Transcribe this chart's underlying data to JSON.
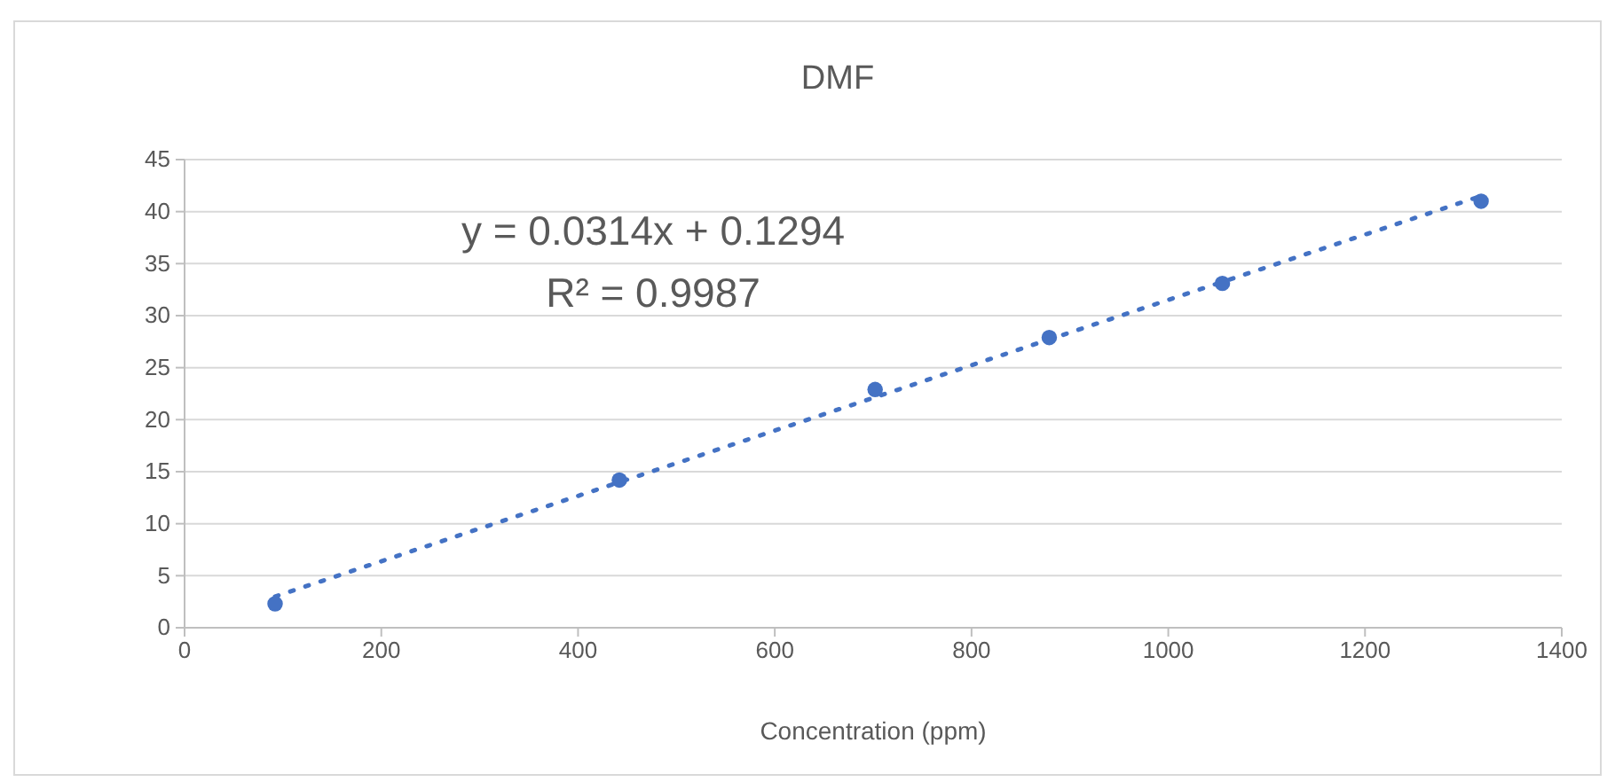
{
  "chart_data": {
    "type": "scatter",
    "title": "DMF",
    "xlabel": "Concentration (ppm)",
    "xlim": [
      0,
      1400
    ],
    "xticks": [
      0,
      200,
      400,
      600,
      800,
      1000,
      1200,
      1400
    ],
    "ylim": [
      0,
      45
    ],
    "yticks": [
      0,
      5,
      10,
      15,
      20,
      25,
      30,
      35,
      40,
      45
    ],
    "grid": "y",
    "series": [
      {
        "color": "#4472c4",
        "marker": "circle",
        "x": [
          92,
          442,
          702,
          879,
          1055,
          1318
        ],
        "values": [
          2.3,
          14.2,
          22.9,
          27.9,
          33.1,
          41.0
        ]
      },
      {
        "type": "line",
        "color": "#4472c4",
        "line_style": "dotted",
        "marker": "none",
        "x": [
          92,
          1318
        ],
        "values": [
          3.0,
          41.5
        ]
      }
    ],
    "annotations": [
      "y = 0.0314x + 0.1294",
      "R² = 0.9987"
    ]
  }
}
